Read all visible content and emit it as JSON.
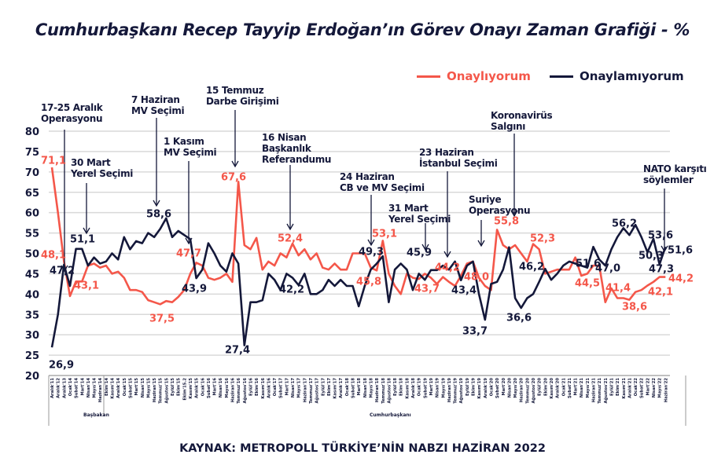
{
  "title": "Cumhurbaşkanı Recep Tayyip Erdoğan’ın Görev Onayı Zaman Grafiği - %",
  "source": "KAYNAK: METROPOLL TÜRKİYE’NİN NABZI HAZİRAN 2022",
  "colors": {
    "approve": "#f4574a",
    "disapprove": "#14183a",
    "grid": "#d9d9d9"
  },
  "chart_data": {
    "type": "line",
    "title": "Cumhurbaşkanı Recep Tayyip Erdoğan’ın Görev Onayı Zaman Grafiği - %",
    "xlabel": "",
    "ylabel": "",
    "ylim": [
      20,
      80
    ],
    "yticks": [
      "20",
      "25",
      "30",
      "35",
      "40",
      "45",
      "50",
      "55",
      "60",
      "65",
      "70",
      "75",
      "80"
    ],
    "grid": true,
    "legend_position": "top-right",
    "x": [
      "Aralık'11",
      "Aralık'12",
      "Aralık'13",
      "Ocak'14",
      "Şubat'14",
      "Mart'14",
      "Nisan'14",
      "Mayıs'14",
      "Haziran'14",
      "Ekim'14",
      "Kasım'14",
      "Aralık'14",
      "Ocak'15",
      "Şubat'15",
      "Mart'15",
      "Nisan'15",
      "Mayıs'15",
      "Haziran'15",
      "Temmuz'15",
      "Ağustos'15",
      "Eylül'15",
      "Ekim'15",
      "Ekim'15.2",
      "Kasım'15",
      "Aralık'15",
      "Ocak'16",
      "Şubat'16",
      "Mart'16",
      "Nisan'16",
      "Mayıs'16",
      "Haziran'16",
      "Temmuz'16",
      "Ağustos'16",
      "Eylül'16",
      "Ekim'16",
      "Kasım'16",
      "Aralık'16",
      "Ocak'17",
      "Şubat'17",
      "Mart'17",
      "Nisan'17",
      "Mayıs'17",
      "Haziran'17",
      "Temmuz'17",
      "Ağustos'17",
      "Eylül'17",
      "Ekim'17",
      "Kasım'17",
      "Aralık'17",
      "Ocak'18",
      "Şubat'18",
      "Mart'18",
      "Nisan'18",
      "Mayıs'18",
      "Haziran'18",
      "Temmuz'18",
      "Ağustos'18",
      "Eylül'18",
      "Ekim'18",
      "Kasım'18",
      "Aralık'18",
      "Ocak'19",
      "Şubat'19",
      "Mart'19",
      "Nisan'19",
      "Mayıs'19",
      "Haziran'19",
      "Temmuz'19",
      "Ağustos'19",
      "Eylül'19",
      "Ekim'19",
      "Kasım'19",
      "Aralık'19",
      "Ocak'20",
      "Şubat'20",
      "Mart'20",
      "Nisan'20",
      "Mayıs'20",
      "Haziran'20",
      "Temmuz'20",
      "Ağustos'20",
      "Eylül'20",
      "Ekim'20",
      "Kasım'20",
      "Aralık'20",
      "Ocak'21",
      "Şubat'21",
      "Mart'21",
      "Nisan'21",
      "Mayıs'21",
      "Haziran'21",
      "Temmuz'21",
      "Ağustos'21",
      "Eylül'21",
      "Ekim'21",
      "Kasım'21",
      "Aralık'21",
      "Ocak'22",
      "Şubat'22",
      "Mart'22",
      "Nisan'22",
      "Mayıs'22",
      "Haziran'22"
    ],
    "groups": [
      {
        "label": "Başbakan"
      },
      {
        "label": "Cumhurbaşkanı"
      }
    ],
    "series": [
      {
        "name": "Onaylıyorum",
        "color": "#f4574a",
        "values": [
          71.1,
          60.0,
          48.1,
          39.5,
          43.1,
          43.1,
          47.0,
          47.5,
          46.5,
          47.0,
          45.0,
          45.5,
          44.0,
          41.0,
          41.0,
          40.5,
          38.5,
          38.0,
          37.5,
          38.3,
          38.0,
          39.3,
          41.0,
          45.0,
          47.7,
          47.0,
          44.0,
          43.5,
          44.0,
          45.0,
          43.0,
          67.6,
          52.0,
          51.0,
          53.8,
          46.0,
          48.0,
          47.0,
          50.0,
          49.0,
          52.4,
          49.5,
          51.0,
          48.5,
          50.0,
          46.5,
          46.0,
          47.5,
          46.0,
          46.0,
          50.0,
          50.0,
          50.0,
          46.5,
          45.8,
          53.1,
          45.0,
          42.0,
          40.0,
          45.0,
          44.0,
          43.7,
          45.0,
          44.0,
          42.5,
          44.2,
          43.0,
          42.0,
          44.5,
          47.5,
          48.0,
          44.0,
          42.0,
          41.0,
          55.8,
          52.0,
          51.0,
          52.0,
          50.0,
          48.0,
          52.3,
          51.0,
          45.0,
          45.5,
          46.0,
          46.0,
          46.0,
          49.0,
          44.5,
          45.0,
          47.0,
          47.0,
          38.0,
          41.4,
          39.0,
          39.0,
          38.6,
          40.5,
          41.0,
          42.1,
          43.0,
          44.2,
          44.2
        ]
      },
      {
        "name": "Onaylamıyorum",
        "color": "#14183a",
        "values": [
          26.9,
          35.0,
          47.2,
          42.0,
          51.1,
          51.1,
          47.0,
          49.0,
          47.5,
          48.0,
          50.0,
          48.5,
          54.0,
          51.0,
          53.0,
          52.5,
          55.0,
          54.0,
          56.0,
          58.6,
          54.0,
          55.5,
          54.5,
          53.5,
          43.9,
          46.0,
          52.5,
          50.0,
          47.0,
          45.5,
          50.0,
          47.5,
          27.4,
          38.0,
          38.0,
          38.5,
          45.0,
          43.5,
          41.0,
          45.0,
          44.0,
          42.2,
          45.0,
          40.0,
          40.0,
          41.0,
          43.5,
          42.0,
          43.5,
          42.0,
          42.0,
          37.0,
          42.0,
          46.0,
          47.5,
          49.3,
          38.0,
          46.0,
          47.5,
          46.0,
          41.0,
          45.0,
          43.5,
          45.9,
          45.9,
          47.0,
          46.0,
          48.0,
          43.4,
          47.0,
          48.0,
          40.0,
          33.7,
          42.5,
          43.0,
          46.0,
          51.5,
          39.0,
          36.6,
          39.0,
          40.0,
          43.0,
          46.2,
          43.5,
          45.0,
          47.0,
          48.0,
          47.5,
          47.0,
          46.5,
          51.6,
          48.5,
          47.0,
          51.0,
          54.0,
          56.2,
          54.5,
          57.0,
          54.0,
          50.3,
          53.6,
          47.3,
          51.6
        ]
      }
    ],
    "data_labels": {
      "approve": [
        "71,1",
        "48,1",
        "43,1",
        "37,5",
        "47,7",
        "67,6",
        "52,4",
        "45,8",
        "53,1",
        "43,7",
        "44,2",
        "48,0",
        "55,8",
        "52,3",
        "44,5",
        "41,4",
        "38,6",
        "42,1",
        "44,2"
      ],
      "disapprove": [
        "26,9",
        "47,2",
        "51,1",
        "58,6",
        "43,9",
        "27,4",
        "42,2",
        "49,3",
        "45,9",
        "43,4",
        "33,7",
        "36,6",
        "46,2",
        "51,6",
        "47,0",
        "56,2",
        "53,6",
        "50,3",
        "47,3",
        "51,6"
      ]
    },
    "annotations": [
      [
        "17-25 Aralık",
        "Operasyonu"
      ],
      [
        "30 Mart",
        "Yerel Seçimi"
      ],
      [
        "7 Haziran",
        "MV Seçimi"
      ],
      [
        "1 Kasım",
        "MV Seçimi"
      ],
      [
        "15 Temmuz",
        "Darbe Girişimi"
      ],
      [
        "16 Nisan",
        "Başkanlık",
        "Referandumu"
      ],
      [
        "24 Haziran",
        "CB  ve MV Seçimi"
      ],
      [
        "31 Mart",
        "Yerel Seçimi"
      ],
      [
        "23 Haziran",
        "İstanbul Seçimi"
      ],
      [
        "Suriye",
        "Operasyonu"
      ],
      [
        "Koronavirüs",
        "Salgını"
      ],
      [
        "NATO karşıtı",
        "söylemler"
      ]
    ]
  }
}
